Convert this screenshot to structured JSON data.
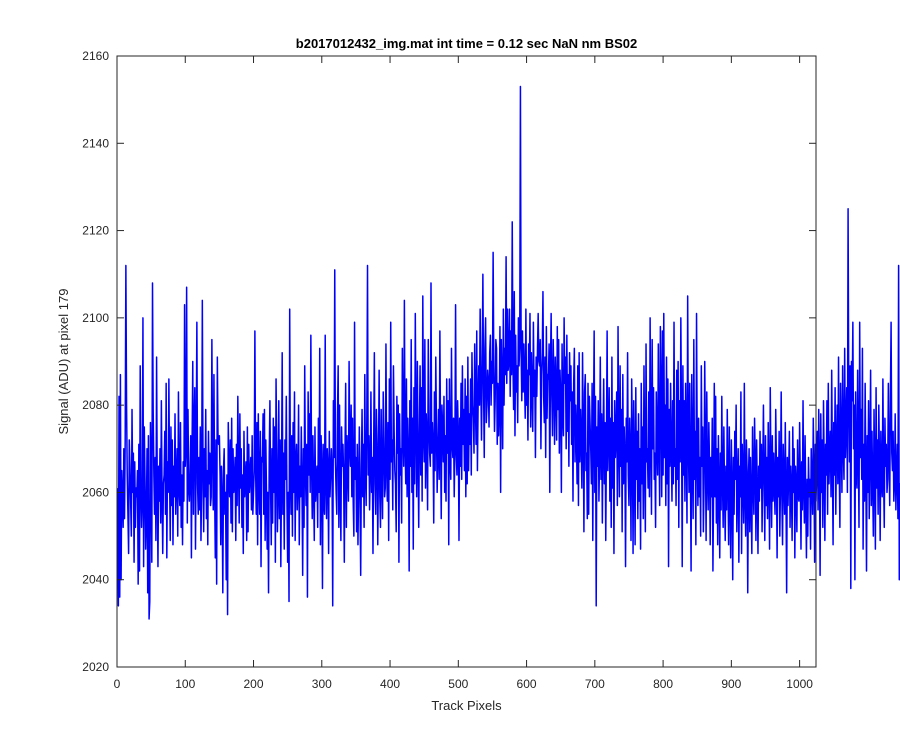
{
  "chart_data": {
    "type": "line",
    "title": "b2017012432_img.mat int time = 0.12 sec  NaN nm BS02",
    "xlabel": "Track Pixels",
    "ylabel": "Signal (ADU) at pixel 179",
    "xlim": [
      0,
      1024
    ],
    "ylim": [
      2020,
      2160
    ],
    "xticks": [
      0,
      100,
      200,
      300,
      400,
      500,
      600,
      700,
      800,
      900,
      1000
    ],
    "yticks": [
      2020,
      2040,
      2060,
      2080,
      2100,
      2120,
      2140,
      2160
    ],
    "grid": false,
    "box": true,
    "series": [
      {
        "name": "",
        "color": "#0000ff",
        "x_start": 1,
        "x_step": 1,
        "values": [
          2061,
          2034,
          2082,
          2036,
          2087,
          2040,
          2065,
          2059,
          2052,
          2070,
          2054,
          2072,
          2112,
          2080,
          2064,
          2055,
          2046,
          2072,
          2066,
          2058,
          2050,
          2079,
          2060,
          2069,
          2044,
          2067,
          2052,
          2061,
          2059,
          2065,
          2039,
          2071,
          2042,
          2089,
          2061,
          2052,
          2058,
          2100,
          2043,
          2075,
          2063,
          2047,
          2054,
          2070,
          2037,
          2073,
          2031,
          2035,
          2076,
          2062,
          2044,
          2108,
          2079,
          2064,
          2055,
          2068,
          2049,
          2091,
          2061,
          2043,
          2066,
          2058,
          2070,
          2053,
          2081,
          2060,
          2046,
          2062,
          2064,
          2074,
          2055,
          2085,
          2045,
          2067,
          2060,
          2086,
          2064,
          2049,
          2075,
          2057,
          2072,
          2048,
          2066,
          2059,
          2078,
          2055,
          2063,
          2070,
          2050,
          2083,
          2061,
          2057,
          2076,
          2052,
          2064,
          2048,
          2067,
          2058,
          2103,
          2066,
          2070,
          2107,
          2053,
          2079,
          2061,
          2058,
          2064,
          2073,
          2045,
          2071,
          2090,
          2055,
          2076,
          2084,
          2047,
          2071,
          2099,
          2062,
          2055,
          2068,
          2056,
          2075,
          2049,
          2061,
          2104,
          2066,
          2051,
          2070,
          2059,
          2079,
          2054,
          2065,
          2048,
          2074,
          2062,
          2069,
          2057,
          2059,
          2095,
          2069,
          2056,
          2087,
          2061,
          2045,
          2072,
          2039,
          2091,
          2072,
          2071,
          2073,
          2064,
          2048,
          2066,
          2059,
          2037,
          2065,
          2070,
          2055,
          2060,
          2040,
          2064,
          2032,
          2076,
          2066,
          2059,
          2072,
          2053,
          2077,
          2051,
          2070,
          2060,
          2062,
          2068,
          2049,
          2071,
          2057,
          2082,
          2066,
          2053,
          2078,
          2061,
          2070,
          2052,
          2064,
          2046,
          2074,
          2059,
          2063,
          2067,
          2049,
          2075,
          2051,
          2071,
          2060,
          2064,
          2068,
          2056,
          2073,
          2055,
          2060,
          2065,
          2097,
          2066,
          2055,
          2076,
          2048,
          2078,
          2062,
          2055,
          2074,
          2043,
          2068,
          2067,
          2078,
          2055,
          2079,
          2049,
          2072,
          2060,
          2047,
          2060,
          2037,
          2068,
          2081,
          2061,
          2048,
          2070,
          2053,
          2077,
          2060,
          2075,
          2044,
          2086,
          2070,
          2051,
          2060,
          2081,
          2054,
          2072,
          2043,
          2063,
          2092,
          2055,
          2069,
          2047,
          2072,
          2063,
          2082,
          2058,
          2044,
          2060,
          2035,
          2102,
          2063,
          2055,
          2073,
          2050,
          2076,
          2060,
          2083,
          2049,
          2067,
          2071,
          2056,
          2062,
          2080,
          2048,
          2066,
          2059,
          2075,
          2061,
          2041,
          2070,
          2052,
          2089,
          2065,
          2057,
          2071,
          2036,
          2083,
          2064,
          2078,
          2060,
          2096,
          2067,
          2054,
          2073,
          2061,
          2049,
          2075,
          2058,
          2063,
          2066,
          2052,
          2077,
          2060,
          2093,
          2048,
          2073,
          2065,
          2038,
          2071,
          2058,
          2055,
          2096,
          2062,
          2054,
          2070,
          2066,
          2046,
          2074,
          2059,
          2064,
          2070,
          2065,
          2034,
          2081,
          2068,
          2111,
          2067,
          2060,
          2055,
          2078,
          2089,
          2052,
          2080,
          2060,
          2049,
          2075,
          2066,
          2071,
          2064,
          2044,
          2069,
          2085,
          2052,
          2073,
          2066,
          2058,
          2090,
          2070,
          2066,
          2080,
          2059,
          2077,
          2058,
          2050,
          2099,
          2063,
          2068,
          2051,
          2071,
          2048,
          2062,
          2075,
          2058,
          2041,
          2066,
          2079,
          2059,
          2071,
          2052,
          2087,
          2064,
          2057,
          2078,
          2112,
          2064,
          2073,
          2056,
          2065,
          2083,
          2060,
          2068,
          2046,
          2070,
          2092,
          2062,
          2055,
          2079,
          2071,
          2048,
          2066,
          2088,
          2059,
          2052,
          2079,
          2063,
          2054,
          2083,
          2071,
          2059,
          2061,
          2094,
          2066,
          2058,
          2076,
          2049,
          2086,
          2063,
          2099,
          2067,
          2072,
          2056,
          2089,
          2074,
          2065,
          2062,
          2051,
          2082,
          2069,
          2080,
          2044,
          2078,
          2064,
          2070,
          2053,
          2093,
          2074,
          2066,
          2104,
          2071,
          2062,
          2086,
          2059,
          2077,
          2069,
          2042,
          2081,
          2066,
          2095,
          2060,
          2077,
          2047,
          2084,
          2062,
          2101,
          2075,
          2059,
          2090,
          2069,
          2052,
          2074,
          2089,
          2064,
          2084,
          2058,
          2105,
          2073,
          2067,
          2095,
          2061,
          2078,
          2072,
          2056,
          2095,
          2075,
          2069,
          2066,
          2108,
          2069,
          2076,
          2071,
          2053,
          2083,
          2065,
          2091,
          2075,
          2060,
          2069,
          2079,
          2063,
          2097,
          2072,
          2054,
          2080,
          2075,
          2067,
          2082,
          2060,
          2073,
          2058,
          2086,
          2069,
          2081,
          2048,
          2086,
          2067,
          2063,
          2093,
          2071,
          2068,
          2077,
          2059,
          2070,
          2103,
          2069,
          2064,
          2081,
          2073,
          2049,
          2077,
          2066,
          2085,
          2063,
          2089,
          2071,
          2079,
          2065,
          2086,
          2059,
          2082,
          2062,
          2091,
          2065,
          2078,
          2071,
          2086,
          2064,
          2092,
          2080,
          2077,
          2069,
          2094,
          2081,
          2071,
          2097,
          2065,
          2080,
          2089,
          2080,
          2102,
          2085,
          2072,
          2089,
          2110,
          2084,
          2068,
          2093,
          2100,
          2076,
          2080,
          2088,
          2085,
          2075,
          2092,
          2096,
          2080,
          2090,
          2085,
          2115,
          2089,
          2074,
          2081,
          2095,
          2093,
          2071,
          2085,
          2073,
          2079,
          2098,
          2060,
          2095,
          2086,
          2070,
          2102,
          2080,
          2093,
          2087,
          2114,
          2085,
          2102,
          2088,
          2090,
          2102,
          2082,
          2097,
          2087,
          2122,
          2091,
          2079,
          2106,
          2073,
          2096,
          2083,
          2089,
          2076,
          2100,
          2089,
          2094,
          2153,
          2093,
          2081,
          2097,
          2083,
          2094,
          2086,
          2077,
          2102,
          2080,
          2088,
          2072,
          2094,
          2087,
          2101,
          2075,
          2092,
          2084,
          2074,
          2099,
          2082,
          2088,
          2068,
          2091,
          2082,
          2093,
          2101,
          2090,
          2089,
          2095,
          2070,
          2087,
          2092,
          2106,
          2082,
          2076,
          2091,
          2068,
          2098,
          2077,
          2087,
          2086,
          2094,
          2060,
          2089,
          2101,
          2082,
          2073,
          2095,
          2086,
          2071,
          2091,
          2084,
          2072,
          2098,
          2079,
          2095,
          2069,
          2088,
          2082,
          2060,
          2094,
          2078,
          2073,
          2100,
          2085,
          2091,
          2070,
          2096,
          2074,
          2087,
          2066,
          2092,
          2081,
          2089,
          2071,
          2083,
          2058,
          2085,
          2093,
          2067,
          2080,
          2074,
          2062,
          2089,
          2057,
          2092,
          2067,
          2079,
          2072,
          2061,
          2092,
          2075,
          2051,
          2083,
          2087,
          2065,
          2069,
          2054,
          2085,
          2055,
          2082,
          2076,
          2070,
          2062,
          2085,
          2049,
          2076,
          2097,
          2060,
          2082,
          2034,
          2075,
          2066,
          2081,
          2058,
          2069,
          2091,
          2063,
          2078,
          2053,
          2072,
          2086,
          2062,
          2076,
          2049,
          2071,
          2097,
          2065,
          2073,
          2084,
          2058,
          2077,
          2052,
          2091,
          2061,
          2076,
          2046,
          2081,
          2068,
          2073,
          2083,
          2057,
          2098,
          2071,
          2059,
          2089,
          2066,
          2079,
          2051,
          2087,
          2062,
          2075,
          2069,
          2043,
          2077,
          2067,
          2092,
          2064,
          2057,
          2077,
          2069,
          2049,
          2086,
          2072,
          2046,
          2081,
          2066,
          2048,
          2084,
          2063,
          2074,
          2054,
          2078,
          2058,
          2070,
          2047,
          2085,
          2062,
          2075,
          2054,
          2089,
          2068,
          2051,
          2094,
          2067,
          2070,
          2061,
          2083,
          2059,
          2100,
          2072,
          2055,
          2095,
          2070,
          2084,
          2063,
          2069,
          2052,
          2083,
          2072,
          2064,
          2094,
          2071,
          2057,
          2098,
          2082,
          2059,
          2097,
          2064,
          2101,
          2068,
          2080,
          2057,
          2091,
          2062,
          2086,
          2043,
          2079,
          2066,
          2085,
          2070,
          2058,
          2081,
          2062,
          2099,
          2066,
          2070,
          2057,
          2088,
          2063,
          2090,
          2052,
          2081,
          2067,
          2100,
          2076,
          2043,
          2089,
          2064,
          2081,
          2058,
          2085,
          2071,
          2053,
          2105,
          2072,
          2060,
          2085,
          2066,
          2042,
          2087,
          2068,
          2054,
          2095,
          2063,
          2074,
          2048,
          2101,
          2070,
          2057,
          2077,
          2059,
          2068,
          2050,
          2089,
          2066,
          2075,
          2051,
          2062,
          2090,
          2071,
          2049,
          2083,
          2064,
          2056,
          2076,
          2067,
          2048,
          2068,
          2059,
          2077,
          2042,
          2061,
          2085,
          2059,
          2082,
          2053,
          2070,
          2048,
          2073,
          2062,
          2045,
          2069,
          2056,
          2082,
          2063,
          2052,
          2075,
          2060,
          2049,
          2066,
          2056,
          2079,
          2063,
          2048,
          2075,
          2059,
          2045,
          2072,
          2061,
          2040,
          2068,
          2055,
          2074,
          2063,
          2080,
          2051,
          2062,
          2070,
          2044,
          2066,
          2059,
          2083,
          2046,
          2071,
          2063,
          2053,
          2085,
          2059,
          2050,
          2072,
          2065,
          2037,
          2063,
          2070,
          2051,
          2068,
          2058,
          2046,
          2075,
          2062,
          2055,
          2077,
          2067,
          2049,
          2072,
          2060,
          2046,
          2066,
          2058,
          2074,
          2061,
          2071,
          2051,
          2065,
          2080,
          2062,
          2049,
          2073,
          2057,
          2068,
          2054,
          2076,
          2063,
          2047,
          2084,
          2064,
          2052,
          2073,
          2058,
          2069,
          2061,
          2055,
          2079,
          2066,
          2045,
          2068,
          2059,
          2074,
          2050,
          2062,
          2083,
          2059,
          2048,
          2071,
          2063,
          2055,
          2076,
          2060,
          2037,
          2068,
          2057,
          2065,
          2074,
          2052,
          2066,
          2061,
          2049,
          2075,
          2060,
          2070,
          2045,
          2066,
          2062,
          2051,
          2072,
          2059,
          2058,
          2076,
          2063,
          2047,
          2067,
          2056,
          2081,
          2061,
          2053,
          2073,
          2058,
          2045,
          2063,
          2050,
          2068,
          2059,
          2063,
          2047,
          2070,
          2062,
          2055,
          2077,
          2065,
          2044,
          2071,
          2058,
          2065,
          2074,
          2056,
          2079,
          2067,
          2041,
          2078,
          2060,
          2072,
          2052,
          2081,
          2066,
          2049,
          2071,
          2064,
          2081,
          2055,
          2085,
          2062,
          2069,
          2074,
          2059,
          2088,
          2067,
          2048,
          2076,
          2064,
          2084,
          2055,
          2071,
          2080,
          2062,
          2091,
          2067,
          2052,
          2085,
          2073,
          2060,
          2089,
          2070,
          2063,
          2093,
          2068,
          2075,
          2084,
          2060,
          2125,
          2081,
          2067,
          2089,
          2038,
          2090,
          2081,
          2099,
          2070,
          2080,
          2040,
          2083,
          2064,
          2061,
          2088,
          2070,
          2052,
          2099,
          2068,
          2079,
          2063,
          2093,
          2047,
          2071,
          2058,
          2085,
          2065,
          2042,
          2073,
          2060,
          2081,
          2054,
          2069,
          2088,
          2057,
          2074,
          2062,
          2050,
          2079,
          2066,
          2047,
          2084,
          2061,
          2072,
          2055,
          2080,
          2067,
          2049,
          2074,
          2062,
          2059,
          2086,
          2064,
          2052,
          2077,
          2066,
          2071,
          2060,
          2063,
          2085,
          2068,
          2057,
          2082,
          2099,
          2069,
          2065,
          2074,
          2058,
          2062,
          2078,
          2056,
          2064,
          2071,
          2054,
          2112,
          2040,
          2062,
          2040,
          2065,
          2038,
          2078,
          2076,
          2067,
          2082,
          2060
        ]
      }
    ]
  }
}
